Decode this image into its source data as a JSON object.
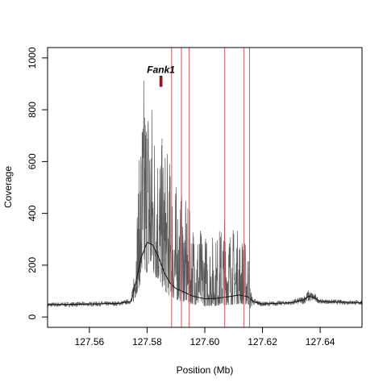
{
  "chart_data": {
    "type": "line",
    "title": "",
    "xlabel": "Position (Mb)",
    "ylabel": "Coverage",
    "xlim": [
      127.5455,
      127.6545
    ],
    "ylim": [
      -40,
      1040
    ],
    "grid": false,
    "legend": "none",
    "x_ticks": [
      127.56,
      127.58,
      127.6,
      127.62,
      127.64
    ],
    "x_tick_labels": [
      "127.56",
      "127.58",
      "127.60",
      "127.62",
      "127.64"
    ],
    "y_ticks": [
      0,
      200,
      400,
      600,
      800,
      1000
    ],
    "y_tick_labels": [
      "0",
      "200",
      "400",
      "600",
      "800",
      "1000"
    ],
    "raw_coverage_color": "#5a5a5a",
    "smoothed_color": "#111111",
    "vline_color": "#d9545c",
    "gene_color": "#b3131b",
    "raw_coverage": [
      {
        "x": 127.5455,
        "y": 55
      },
      {
        "x": 127.574,
        "y": 60
      },
      {
        "x": 127.575,
        "y": 150
      },
      {
        "x": 127.577,
        "y": 560
      },
      {
        "x": 127.578,
        "y": 840
      },
      {
        "x": 127.579,
        "y": 980
      },
      {
        "x": 127.581,
        "y": 940
      },
      {
        "x": 127.583,
        "y": 780
      },
      {
        "x": 127.585,
        "y": 700
      },
      {
        "x": 127.587,
        "y": 650
      },
      {
        "x": 127.59,
        "y": 520
      },
      {
        "x": 127.593,
        "y": 460
      },
      {
        "x": 127.596,
        "y": 380
      },
      {
        "x": 127.6,
        "y": 330
      },
      {
        "x": 127.604,
        "y": 320
      },
      {
        "x": 127.607,
        "y": 400
      },
      {
        "x": 127.609,
        "y": 360
      },
      {
        "x": 127.612,
        "y": 340
      },
      {
        "x": 127.615,
        "y": 280
      },
      {
        "x": 127.6165,
        "y": 90
      },
      {
        "x": 127.62,
        "y": 70
      },
      {
        "x": 127.63,
        "y": 75
      },
      {
        "x": 127.634,
        "y": 100
      },
      {
        "x": 127.636,
        "y": 135
      },
      {
        "x": 127.638,
        "y": 110
      },
      {
        "x": 127.64,
        "y": 80
      },
      {
        "x": 127.6545,
        "y": 65
      }
    ],
    "smoothed": [
      {
        "x": 127.5455,
        "y": 47
      },
      {
        "x": 127.56,
        "y": 50
      },
      {
        "x": 127.57,
        "y": 52
      },
      {
        "x": 127.5745,
        "y": 60
      },
      {
        "x": 127.576,
        "y": 130
      },
      {
        "x": 127.578,
        "y": 230
      },
      {
        "x": 127.58,
        "y": 288
      },
      {
        "x": 127.582,
        "y": 278
      },
      {
        "x": 127.584,
        "y": 230
      },
      {
        "x": 127.586,
        "y": 170
      },
      {
        "x": 127.588,
        "y": 130
      },
      {
        "x": 127.59,
        "y": 110
      },
      {
        "x": 127.593,
        "y": 95
      },
      {
        "x": 127.596,
        "y": 80
      },
      {
        "x": 127.6,
        "y": 70
      },
      {
        "x": 127.604,
        "y": 72
      },
      {
        "x": 127.608,
        "y": 78
      },
      {
        "x": 127.612,
        "y": 85
      },
      {
        "x": 127.615,
        "y": 78
      },
      {
        "x": 127.617,
        "y": 58
      },
      {
        "x": 127.62,
        "y": 50
      },
      {
        "x": 127.63,
        "y": 55
      },
      {
        "x": 127.634,
        "y": 65
      },
      {
        "x": 127.636,
        "y": 80
      },
      {
        "x": 127.638,
        "y": 75
      },
      {
        "x": 127.64,
        "y": 60
      },
      {
        "x": 127.6545,
        "y": 55
      }
    ],
    "vertical_lines": [
      127.5885,
      127.5919,
      127.5946,
      127.6069,
      127.6136,
      127.6155
    ],
    "annotations": [
      {
        "text": "Fank1",
        "x": 127.5848,
        "y": 942,
        "marker": {
          "x": 127.5848,
          "y0": 890,
          "y1": 930
        }
      }
    ]
  }
}
